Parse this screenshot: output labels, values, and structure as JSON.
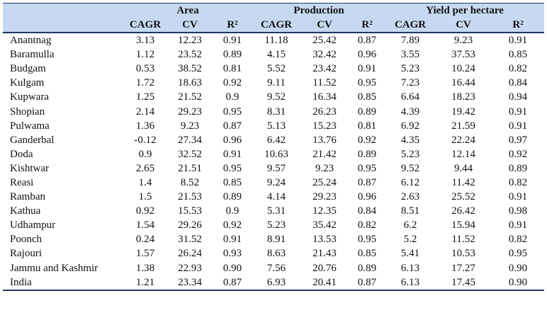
{
  "headers": {
    "groups": [
      "Area",
      "Production",
      "Yield per hectare"
    ],
    "cols": [
      "CAGR",
      "CV",
      "R²",
      "CAGR",
      "CV",
      "R²",
      "CAGR",
      "CV",
      "R²"
    ]
  },
  "rows": [
    {
      "district": "Anantnag",
      "v": [
        "3.13",
        "12.23",
        "0.91",
        "11.18",
        "25.42",
        "0.87",
        "7.89",
        "9.23",
        "0.91"
      ]
    },
    {
      "district": "Baramulla",
      "v": [
        "1.12",
        "23.52",
        "0.89",
        "4.15",
        "32.42",
        "0.96",
        "3.55",
        "37.53",
        "0.85"
      ]
    },
    {
      "district": "Budgam",
      "v": [
        "0.53",
        "38.52",
        "0.81",
        "5.52",
        "23.42",
        "0.91",
        "5.23",
        "10.24",
        "0.82"
      ]
    },
    {
      "district": "Kulgam",
      "v": [
        "1.72",
        "18.63",
        "0.92",
        "9.11",
        "11.52",
        "0.95",
        "7.23",
        "16.44",
        "0.84"
      ]
    },
    {
      "district": "Kupwara",
      "v": [
        "1.25",
        "21.52",
        "0.9",
        "9.52",
        "16.34",
        "0.85",
        "6.64",
        "18.23",
        "0.94"
      ]
    },
    {
      "district": "Shopian",
      "v": [
        "2.14",
        "29.23",
        "0.95",
        "8.31",
        "26.23",
        "0.89",
        "4.39",
        "19.42",
        "0.91"
      ]
    },
    {
      "district": "Pulwama",
      "v": [
        "1.36",
        "9.23",
        "0.87",
        "5.13",
        "15.23",
        "0.81",
        "6.92",
        "21.59",
        "0.91"
      ]
    },
    {
      "district": "Ganderbal",
      "v": [
        "-0.12",
        "27.34",
        "0.96",
        "6.42",
        "13.76",
        "0.92",
        "4.35",
        "22.24",
        "0.97"
      ]
    },
    {
      "district": "Doda",
      "v": [
        "0.9",
        "32.52",
        "0.91",
        "10.63",
        "21.42",
        "0.89",
        "5.23",
        "12.14",
        "0.92"
      ]
    },
    {
      "district": "Kishtwar",
      "v": [
        "2.65",
        "21.51",
        "0.95",
        "9.57",
        "9.23",
        "0.95",
        "9.52",
        "9.44",
        "0.89"
      ]
    },
    {
      "district": "Reasi",
      "v": [
        "1.4",
        "8.52",
        "0.85",
        "9.24",
        "25.24",
        "0.87",
        "6.12",
        "11.42",
        "0.82"
      ]
    },
    {
      "district": "Ramban",
      "v": [
        "1.5",
        "21.53",
        "0.89",
        "4.14",
        "29.23",
        "0.96",
        "2.63",
        "25.52",
        "0.91"
      ]
    },
    {
      "district": "Kathua",
      "v": [
        "0.92",
        "15.53",
        "0.9",
        "5.31",
        "12.35",
        "0.84",
        "8.51",
        "26.42",
        "0.98"
      ]
    },
    {
      "district": "Udhampur",
      "v": [
        "1.54",
        "29.26",
        "0.92",
        "5.23",
        "35.42",
        "0.82",
        "6.2",
        "15.94",
        "0.91"
      ]
    },
    {
      "district": "Poonch",
      "v": [
        "0.24",
        "31.52",
        "0.91",
        "8.91",
        "13.53",
        "0.95",
        "5.2",
        "11.52",
        "0.82"
      ]
    },
    {
      "district": "Rajouri",
      "v": [
        "1.57",
        "26.24",
        "0.93",
        "8.63",
        "21.43",
        "0.85",
        "5.41",
        "10.53",
        "0.95"
      ]
    },
    {
      "district": "Jammu and Kashmir",
      "v": [
        "1.38",
        "22.93",
        "0.90",
        "7.56",
        "20.76",
        "0.89",
        "6.13",
        "17.27",
        "0.90"
      ]
    },
    {
      "district": "India",
      "v": [
        "1.21",
        "23.34",
        "0.87",
        "6.93",
        "20.41",
        "0.87",
        "6.13",
        "17.45",
        "0.90"
      ]
    }
  ]
}
